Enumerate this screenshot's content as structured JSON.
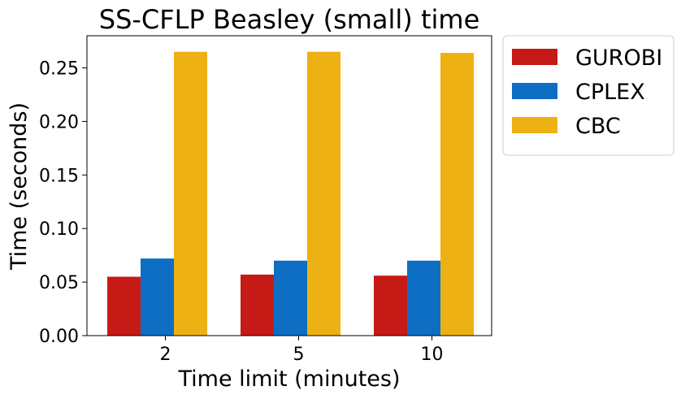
{
  "chart_data": {
    "type": "bar",
    "title": "SS-CFLP Beasley (small) time",
    "xlabel": "Time limit (minutes)",
    "ylabel": "Time (seconds)",
    "categories": [
      "2",
      "5",
      "10"
    ],
    "ylim": [
      0,
      0.28
    ],
    "yticks": [
      "0.00",
      "0.05",
      "0.10",
      "0.15",
      "0.20",
      "0.25"
    ],
    "ytick_values": [
      0.0,
      0.05,
      0.1,
      0.15,
      0.2,
      0.25
    ],
    "grid": false,
    "legend_position": "outside-right-top",
    "series": [
      {
        "name": "GUROBI",
        "color": "#c61a16",
        "values": [
          0.055,
          0.057,
          0.056
        ]
      },
      {
        "name": "CPLEX",
        "color": "#0d6ec4",
        "values": [
          0.072,
          0.07,
          0.07
        ]
      },
      {
        "name": "CBC",
        "color": "#eeb113",
        "values": [
          0.265,
          0.265,
          0.264
        ]
      }
    ]
  }
}
